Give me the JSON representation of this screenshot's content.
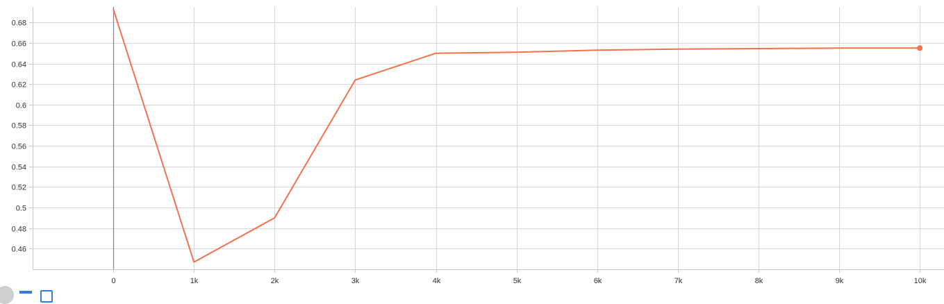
{
  "chart_data": {
    "type": "line",
    "title": "",
    "xlabel": "",
    "ylabel": "",
    "xlim": [
      -1000,
      10300
    ],
    "ylim": [
      0.44,
      0.695
    ],
    "x_ticks": [
      0,
      1000,
      2000,
      3000,
      4000,
      5000,
      6000,
      7000,
      8000,
      9000,
      10000
    ],
    "x_tick_labels": [
      "0",
      "1k",
      "2k",
      "3k",
      "4k",
      "5k",
      "6k",
      "7k",
      "8k",
      "9k",
      "10k"
    ],
    "y_ticks": [
      0.46,
      0.48,
      0.5,
      0.52,
      0.54,
      0.56,
      0.58,
      0.6,
      0.62,
      0.64,
      0.66,
      0.68
    ],
    "y_tick_labels": [
      "0.46",
      "0.48",
      "0.5",
      "0.52",
      "0.54",
      "0.56",
      "0.58",
      "0.6",
      "0.62",
      "0.64",
      "0.66",
      "0.68"
    ],
    "grid": true,
    "series": [
      {
        "color": "#f4714e",
        "x": [
          0,
          1000,
          2000,
          3000,
          4000,
          5000,
          6000,
          7000,
          8000,
          9000,
          10000
        ],
        "y": [
          0.693,
          0.447,
          0.49,
          0.624,
          0.65,
          0.651,
          0.653,
          0.654,
          0.6545,
          0.655,
          0.655
        ]
      }
    ]
  },
  "controls": {
    "icons": [
      "fit-domain-icon",
      "log-scale-icon",
      "expand-icon"
    ]
  }
}
